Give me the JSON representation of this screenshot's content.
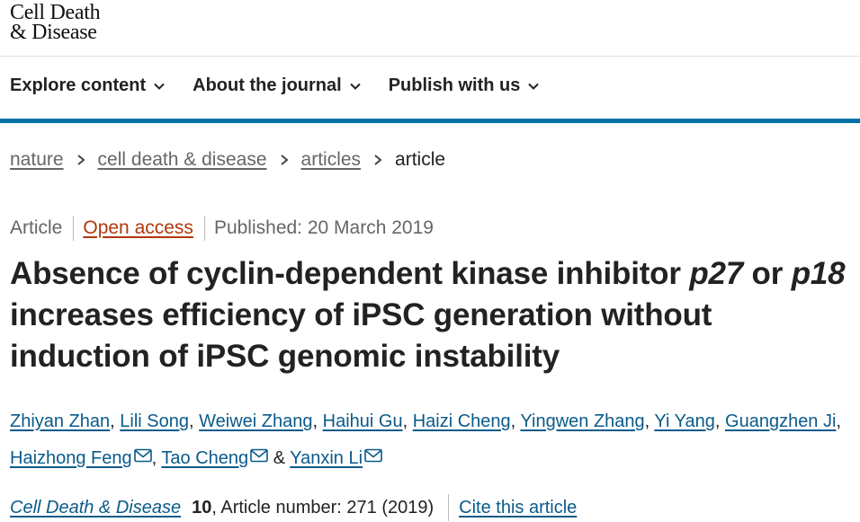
{
  "site": {
    "logo_line1": "Cell Death",
    "logo_line2": "& Disease"
  },
  "nav": [
    {
      "label": "Explore content"
    },
    {
      "label": "About the journal"
    },
    {
      "label": "Publish with us"
    }
  ],
  "breadcrumb": {
    "items": [
      "nature",
      "cell death & disease",
      "articles"
    ],
    "current": "article"
  },
  "article": {
    "type": "Article",
    "access": "Open access",
    "published": "Published: 20 March 2019",
    "title_parts": {
      "t1": "Absence of cyclin-dependent kinase inhibitor ",
      "gene1": "p27",
      "t2": " or ",
      "gene2": "p18",
      "t3": " increases efficiency of iPSC generation without induction of iPSC genomic instability"
    },
    "authors": [
      "Zhiyan Zhan",
      "Lili Song",
      "Weiwei Zhang",
      "Haihui Gu",
      "Haizi Cheng",
      "Yingwen Zhang",
      "Yi Yang",
      "Guangzhen Ji",
      "Haizhong Feng",
      "Tao Cheng",
      "Yanxin Li"
    ],
    "author_sep": ", ",
    "author_and": " & ",
    "journal": "Cell Death & Disease",
    "volume": "10",
    "article_number": ", Article number: 271 (2019)",
    "cite_label": "Cite this article"
  },
  "colors": {
    "accent": "#0070a8",
    "link": "#0a5a8a",
    "open_access": "#b0380a"
  }
}
